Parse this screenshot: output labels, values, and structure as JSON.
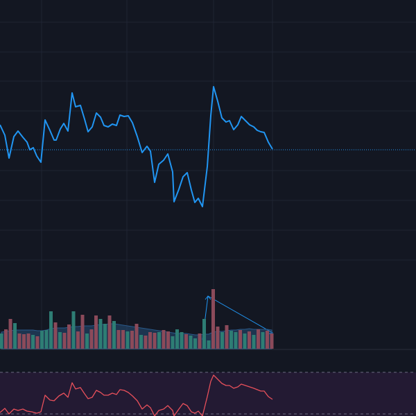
{
  "chart_data": [
    {
      "type": "line",
      "color": "#2196f3",
      "x": [
        0,
        7,
        13,
        20,
        26,
        33,
        39,
        43,
        48,
        53,
        59,
        65,
        72,
        78,
        81,
        87,
        92,
        98,
        104,
        109,
        116,
        122,
        127,
        133,
        139,
        145,
        150,
        156,
        162,
        168,
        173,
        179,
        185,
        191,
        198,
        205,
        212,
        217,
        223,
        229,
        236,
        242,
        249,
        251,
        258,
        264,
        270,
        276,
        281,
        286,
        292,
        299,
        304,
        308,
        314,
        320,
        326,
        331,
        337,
        343,
        348,
        354,
        360,
        366,
        371,
        376,
        381,
        387,
        393
      ],
      "values": [
        323,
        308,
        275,
        306,
        314,
        305,
        298,
        287,
        290,
        278,
        269,
        330,
        315,
        301,
        301,
        317,
        325,
        314,
        369,
        349,
        351,
        331,
        313,
        320,
        340,
        334,
        322,
        320,
        324,
        322,
        337,
        335,
        336,
        326,
        306,
        283,
        292,
        285,
        240,
        266,
        272,
        281,
        255,
        212,
        230,
        248,
        254,
        229,
        211,
        217,
        205,
        263,
        336,
        378,
        357,
        333,
        327,
        329,
        316,
        323,
        335,
        329,
        323,
        320,
        315,
        313,
        312,
        298,
        288
      ],
      "xlim": [
        0,
        600
      ],
      "ylim": [
        0,
        503
      ]
    },
    {
      "type": "bar",
      "values": [
        22,
        28,
        43,
        37,
        22,
        21,
        22,
        20,
        18,
        26,
        27,
        54,
        38,
        24,
        23,
        35,
        54,
        25,
        49,
        22,
        28,
        48,
        43,
        36,
        48,
        40,
        27,
        27,
        25,
        26,
        36,
        20,
        19,
        24,
        23,
        24,
        27,
        25,
        18,
        28,
        24,
        21,
        19,
        15,
        22,
        43,
        12,
        86,
        32,
        24,
        34,
        26,
        24,
        27,
        22,
        25,
        20,
        28,
        24,
        26,
        22
      ],
      "colors": [
        "#2e7d74",
        "#8b4a5a",
        "#8b4a5a",
        "#2e7d74",
        "#8b4a5a",
        "#8b4a5a",
        "#8b4a5a",
        "#2e7d74",
        "#8b4a5a",
        "#2e7d74",
        "#2e7d74",
        "#2e7d74",
        "#8b4a5a",
        "#2e7d74",
        "#8b4a5a",
        "#8b4a5a",
        "#2e7d74",
        "#8b4a5a",
        "#8b4a5a",
        "#2e7d74",
        "#8b4a5a",
        "#8b4a5a",
        "#2e7d74",
        "#2e7d74",
        "#8b4a5a",
        "#2e7d74",
        "#8b4a5a",
        "#8b4a5a",
        "#2e7d74",
        "#8b4a5a",
        "#8b4a5a",
        "#2e7d74",
        "#8b4a5a",
        "#8b4a5a",
        "#8b4a5a",
        "#2e7d74",
        "#8b4a5a",
        "#8b4a5a",
        "#2e7d74",
        "#2e7d74",
        "#2e7d74",
        "#8b4a5a",
        "#2e7d74",
        "#2e7d74",
        "#8b4a5a",
        "#2e7d74",
        "#2e7d74",
        "#8b4a5a",
        "#8b4a5a",
        "#2e7d74",
        "#8b4a5a",
        "#2e7d74",
        "#2e7d74",
        "#8b4a5a",
        "#2e7d74",
        "#8b4a5a",
        "#2e7d74",
        "#8b4a5a",
        "#2e7d74",
        "#8b4a5a",
        "#8b4a5a"
      ],
      "ma": [
        24,
        25,
        26,
        27,
        27,
        27,
        27,
        27,
        26,
        26,
        27,
        29,
        30,
        30,
        30,
        31,
        32,
        32,
        33,
        33,
        33,
        34,
        35,
        35,
        36,
        36,
        35,
        34,
        33,
        32,
        31,
        30,
        29,
        28,
        27,
        26,
        25,
        24,
        23,
        22,
        22,
        22,
        21,
        20,
        20,
        21,
        21,
        24,
        25,
        25,
        26,
        27,
        27,
        28,
        28,
        29,
        28,
        28,
        28,
        28,
        27
      ],
      "ma_color": "#2a5a8a",
      "xlim": [
        0,
        600
      ],
      "ylim": [
        0,
        503
      ]
    },
    {
      "type": "line",
      "color": "#e8505b",
      "x": [
        0,
        7,
        13,
        20,
        26,
        33,
        39,
        46,
        53,
        59,
        65,
        72,
        78,
        85,
        92,
        98,
        104,
        109,
        116,
        122,
        127,
        133,
        139,
        145,
        150,
        156,
        162,
        168,
        173,
        179,
        185,
        191,
        198,
        205,
        212,
        217,
        223,
        229,
        236,
        242,
        249,
        251,
        258,
        264,
        270,
        276,
        281,
        286,
        292,
        299,
        304,
        308,
        314,
        320,
        326,
        331,
        337,
        343,
        348,
        354,
        360,
        366,
        371,
        376,
        381,
        387,
        393
      ],
      "values": [
        5,
        11,
        3,
        10,
        8,
        10,
        7,
        6,
        4,
        6,
        30,
        23,
        22,
        29,
        33,
        27,
        48,
        39,
        41,
        32,
        25,
        27,
        37,
        34,
        30,
        30,
        33,
        31,
        38,
        37,
        34,
        29,
        22,
        10,
        16,
        12,
        0,
        8,
        10,
        15,
        8,
        0,
        10,
        18,
        15,
        6,
        4,
        7,
        0,
        28,
        50,
        59,
        53,
        47,
        44,
        44,
        40,
        42,
        46,
        44,
        42,
        40,
        38,
        36,
        36,
        28,
        24
      ],
      "xlim": [
        0,
        600
      ],
      "ylim": [
        0,
        65
      ]
    }
  ]
}
